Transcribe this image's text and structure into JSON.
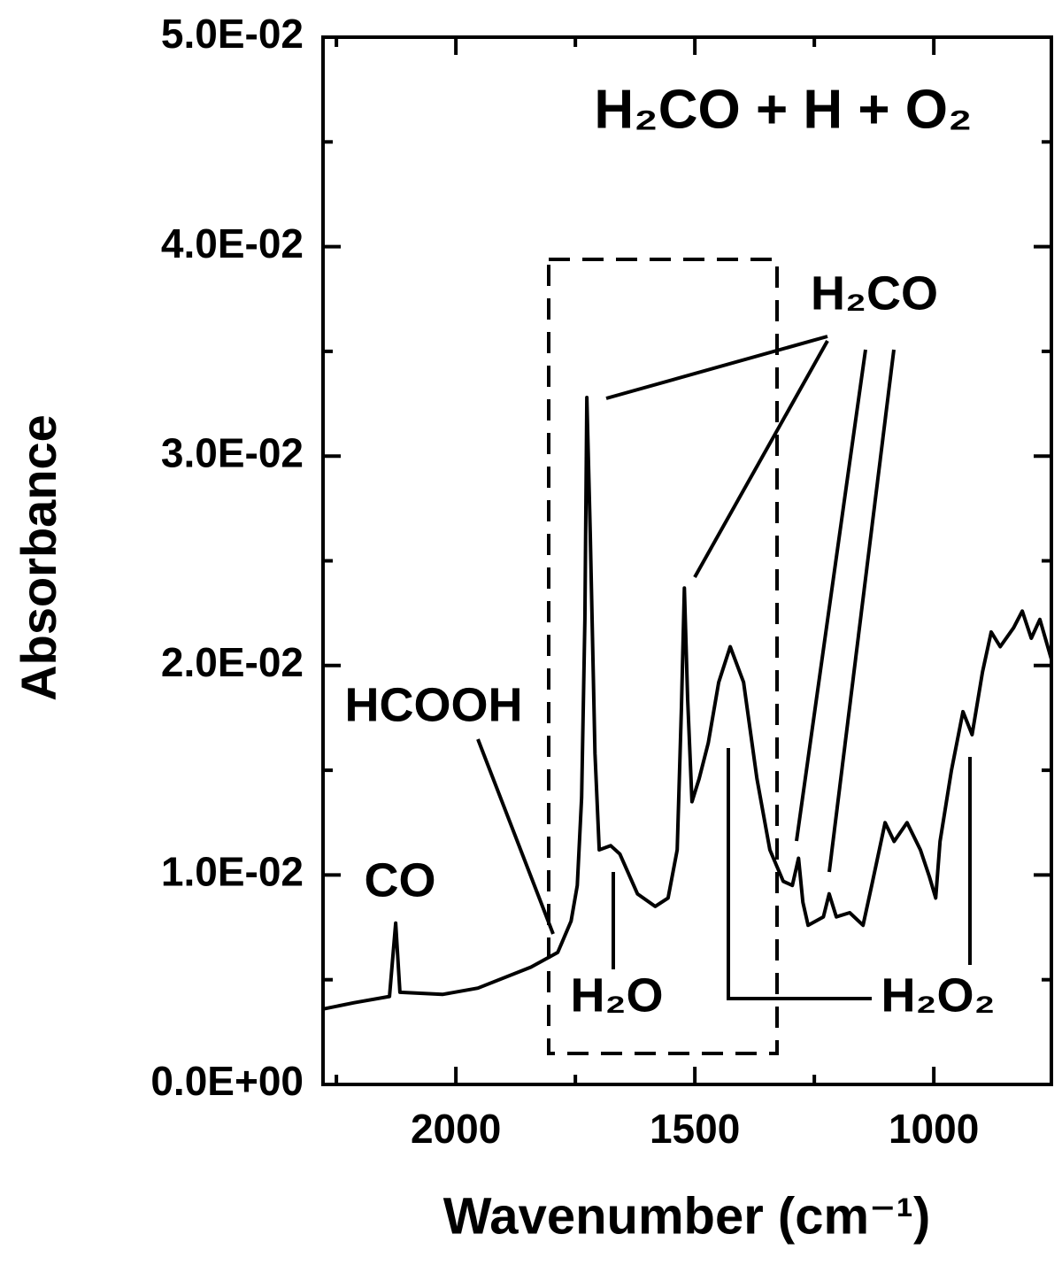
{
  "chart_data": {
    "type": "line",
    "title": "H₂CO + H + O₂",
    "xlabel": "Wavenumber (cm⁻¹)",
    "ylabel": "Absorbance",
    "xlim": [
      2278,
      754
    ],
    "ylim": [
      0,
      0.05
    ],
    "xticks": [
      2000,
      1500,
      1000
    ],
    "xminor_ticks": [
      2250,
      1750,
      1250,
      750
    ],
    "yticks": [
      {
        "value": 0,
        "label": "0.0E+00"
      },
      {
        "value": 0.01,
        "label": "1.0E-02"
      },
      {
        "value": 0.02,
        "label": "2.0E-02"
      },
      {
        "value": 0.03,
        "label": "3.0E-02"
      },
      {
        "value": 0.04,
        "label": "4.0E-02"
      },
      {
        "value": 0.05,
        "label": "5.0E-02"
      }
    ],
    "yminor_ticks": [
      0.005,
      0.015,
      0.025,
      0.035,
      0.045
    ],
    "color": "#000000",
    "x": [
      2278,
      2213,
      2139,
      2126,
      2117,
      2028,
      1954,
      1843,
      1787,
      1759,
      1746,
      1737,
      1730,
      1726,
      1719,
      1709,
      1700,
      1676,
      1657,
      1620,
      1583,
      1556,
      1537,
      1528,
      1522,
      1515,
      1506,
      1491,
      1472,
      1450,
      1426,
      1398,
      1370,
      1343,
      1315,
      1296,
      1283,
      1274,
      1263,
      1231,
      1219,
      1204,
      1176,
      1148,
      1130,
      1102,
      1083,
      1056,
      1028,
      1009,
      996,
      987,
      963,
      939,
      920,
      898,
      880,
      861,
      833,
      815,
      796,
      778,
      754
    ],
    "values": [
      0.0036,
      0.0039,
      0.0042,
      0.0077,
      0.0044,
      0.0043,
      0.0046,
      0.0056,
      0.0063,
      0.0078,
      0.0095,
      0.0137,
      0.0222,
      0.0328,
      0.0264,
      0.0158,
      0.0112,
      0.0114,
      0.011,
      0.0091,
      0.0085,
      0.0089,
      0.0112,
      0.018,
      0.0237,
      0.0184,
      0.0135,
      0.0146,
      0.0163,
      0.0192,
      0.0209,
      0.0192,
      0.0146,
      0.0112,
      0.0097,
      0.0095,
      0.0108,
      0.0087,
      0.0076,
      0.008,
      0.0091,
      0.008,
      0.0082,
      0.0076,
      0.0095,
      0.0125,
      0.0116,
      0.0125,
      0.0112,
      0.0099,
      0.0089,
      0.0116,
      0.015,
      0.0178,
      0.0167,
      0.0197,
      0.0216,
      0.0209,
      0.0218,
      0.0226,
      0.0213,
      0.0222,
      0.0203
    ],
    "annotations": [
      "CO",
      "HCOOH",
      "H₂O",
      "H₂CO",
      "H₂O₂"
    ]
  }
}
